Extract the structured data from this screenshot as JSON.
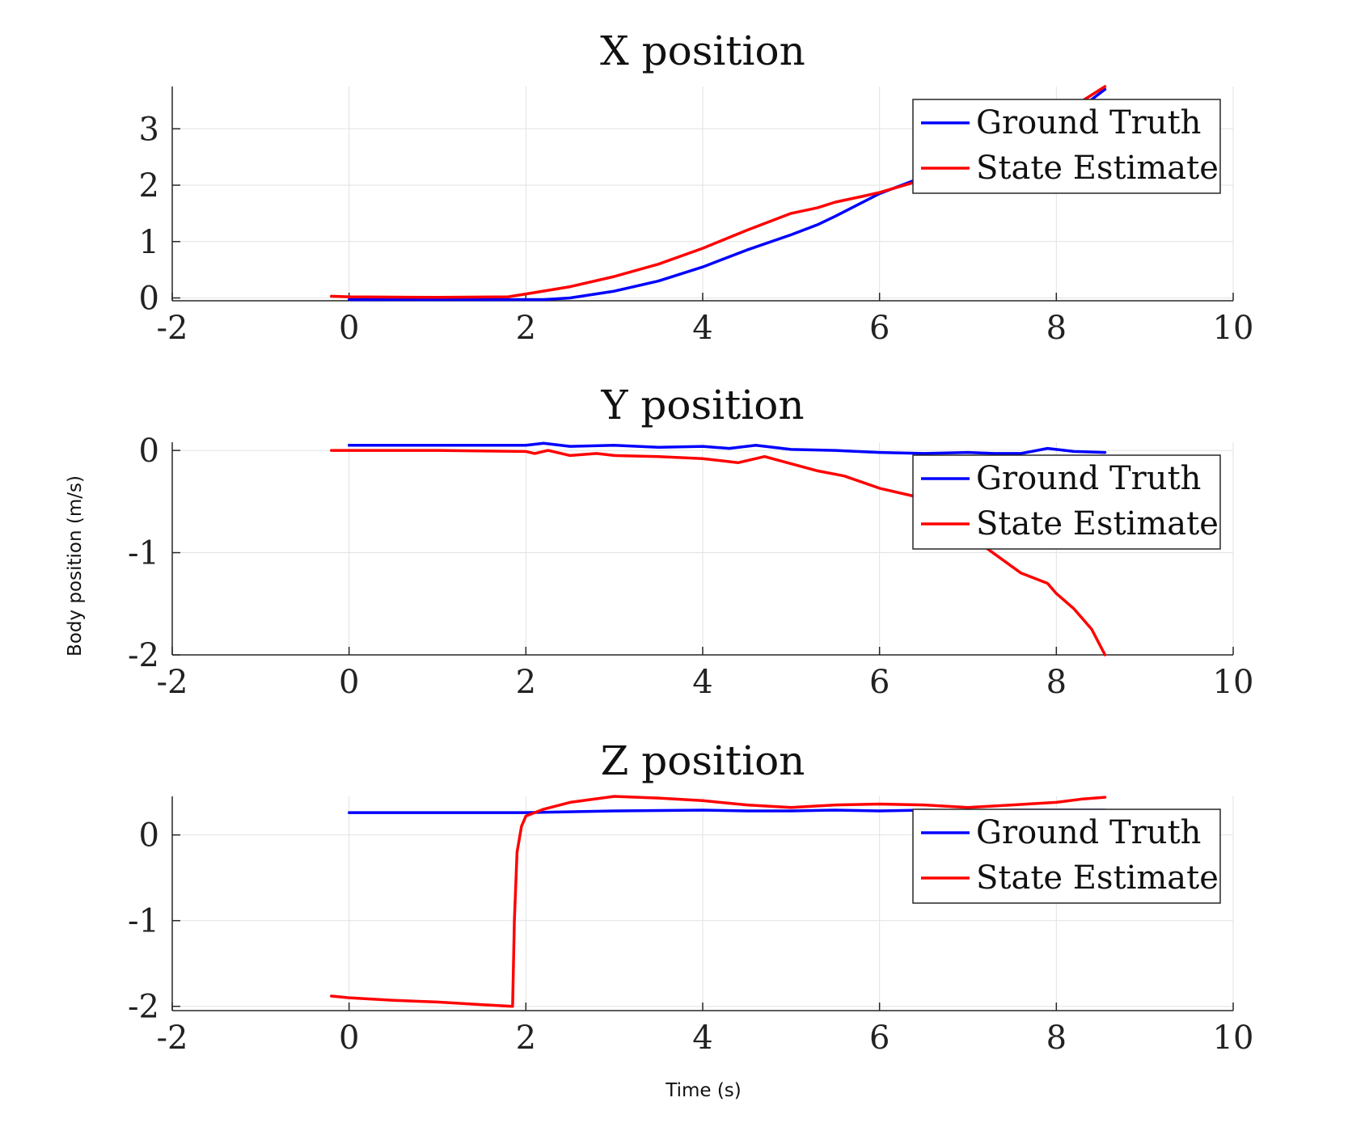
{
  "figure": {
    "ylabel": "Body position (m/s)",
    "xlabel": "Time (s)"
  },
  "chart_data": [
    {
      "type": "line",
      "title": "X position",
      "xlim": [
        -2,
        10
      ],
      "ylim": [
        -0.05,
        3.75
      ],
      "xticks": [
        "-2",
        "0",
        "2",
        "4",
        "6",
        "8",
        "10"
      ],
      "yticks": [
        "0",
        "1",
        "2",
        "3"
      ],
      "grid": true,
      "legend_position": "top-right",
      "series": [
        {
          "name": "Ground Truth",
          "color": "#0000ff",
          "x": [
            0,
            1,
            2,
            2.2,
            2.5,
            3,
            3.5,
            4,
            4.5,
            5,
            5.3,
            5.5,
            6,
            6.5,
            7,
            7.5,
            8,
            8.3,
            8.55
          ],
          "y": [
            -0.03,
            -0.03,
            -0.03,
            -0.03,
            0.0,
            0.12,
            0.3,
            0.55,
            0.85,
            1.12,
            1.3,
            1.45,
            1.85,
            2.15,
            2.45,
            2.75,
            3.1,
            3.4,
            3.7
          ]
        },
        {
          "name": "State Estimate",
          "color": "#ff0000",
          "x": [
            -0.2,
            0,
            1,
            1.8,
            2,
            2.5,
            3,
            3.5,
            4,
            4.5,
            5,
            5.3,
            5.5,
            5.8,
            6,
            6.5,
            7,
            7.5,
            8,
            8.3,
            8.55
          ],
          "y": [
            0.03,
            0.02,
            0.01,
            0.02,
            0.07,
            0.2,
            0.38,
            0.6,
            0.88,
            1.2,
            1.5,
            1.6,
            1.7,
            1.8,
            1.87,
            2.1,
            2.4,
            2.8,
            3.1,
            3.5,
            3.75
          ]
        }
      ]
    },
    {
      "type": "line",
      "title": "Y position",
      "xlim": [
        -2,
        10
      ],
      "ylim": [
        -2.0,
        0.08
      ],
      "xticks": [
        "-2",
        "0",
        "2",
        "4",
        "6",
        "8",
        "10"
      ],
      "yticks": [
        "-2",
        "-1",
        "0"
      ],
      "grid": true,
      "legend_position": "top-right",
      "series": [
        {
          "name": "Ground Truth",
          "color": "#0000ff",
          "x": [
            0,
            1,
            2,
            2.2,
            2.5,
            3,
            3.5,
            4,
            4.3,
            4.6,
            5,
            5.5,
            6,
            6.5,
            7,
            7.3,
            7.6,
            7.9,
            8.2,
            8.55
          ],
          "y": [
            0.05,
            0.05,
            0.05,
            0.07,
            0.04,
            0.05,
            0.03,
            0.04,
            0.02,
            0.05,
            0.01,
            0.0,
            -0.02,
            -0.03,
            -0.02,
            -0.03,
            -0.03,
            0.02,
            -0.01,
            -0.02
          ]
        },
        {
          "name": "State Estimate",
          "color": "#ff0000",
          "x": [
            -0.2,
            0,
            1,
            2,
            2.1,
            2.25,
            2.5,
            2.8,
            3,
            3.5,
            4,
            4.4,
            4.7,
            5,
            5.3,
            5.6,
            6,
            6.4,
            6.8,
            7.2,
            7.6,
            7.9,
            8.0,
            8.2,
            8.4,
            8.55
          ],
          "y": [
            0.0,
            0.0,
            0.0,
            -0.01,
            -0.03,
            0.0,
            -0.05,
            -0.03,
            -0.05,
            -0.06,
            -0.08,
            -0.12,
            -0.06,
            -0.13,
            -0.2,
            -0.25,
            -0.37,
            -0.45,
            -0.7,
            -0.95,
            -1.2,
            -1.3,
            -1.4,
            -1.55,
            -1.75,
            -2.0
          ]
        }
      ]
    },
    {
      "type": "line",
      "title": "Z position",
      "xlim": [
        -2,
        10
      ],
      "ylim": [
        -2.05,
        0.45
      ],
      "xticks": [
        "-2",
        "0",
        "2",
        "4",
        "6",
        "8",
        "10"
      ],
      "yticks": [
        "-2",
        "-1",
        "0"
      ],
      "grid": true,
      "legend_position": "top-right",
      "series": [
        {
          "name": "Ground Truth",
          "color": "#0000ff",
          "x": [
            0,
            1,
            2,
            3,
            4,
            4.5,
            5,
            5.5,
            6,
            6.5,
            7,
            7.5,
            8,
            8.55
          ],
          "y": [
            0.26,
            0.26,
            0.26,
            0.28,
            0.29,
            0.28,
            0.28,
            0.29,
            0.28,
            0.29,
            0.28,
            0.29,
            0.29,
            0.29
          ]
        },
        {
          "name": "State Estimate",
          "color": "#ff0000",
          "x": [
            -0.2,
            0,
            0.5,
            1,
            1.5,
            1.85,
            1.87,
            1.9,
            1.95,
            2.0,
            2.2,
            2.5,
            3,
            3.5,
            4,
            4.5,
            5,
            5.5,
            6,
            6.5,
            7,
            7.5,
            8,
            8.3,
            8.55
          ],
          "y": [
            -1.88,
            -1.9,
            -1.93,
            -1.95,
            -1.98,
            -2.0,
            -1.0,
            -0.2,
            0.1,
            0.22,
            0.3,
            0.38,
            0.45,
            0.43,
            0.4,
            0.35,
            0.32,
            0.35,
            0.36,
            0.35,
            0.32,
            0.35,
            0.38,
            0.42,
            0.44
          ]
        }
      ]
    }
  ]
}
